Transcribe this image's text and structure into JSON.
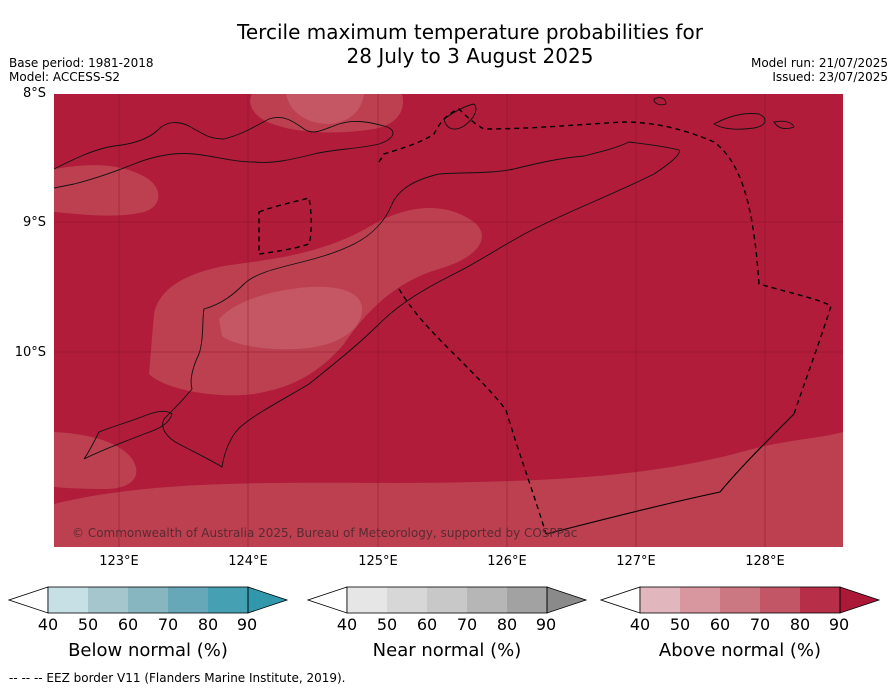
{
  "title_line1": "Tercile maximum temperature probabilities for",
  "title_line2": "28 July to 3 August 2025",
  "base_period": "Base period: 1981-2018",
  "model": "Model: ACCESS-S2",
  "model_run": "Model run: 21/07/2025",
  "issued": "Issued: 23/07/2025",
  "lat_labels": [
    "8°S",
    "9°S",
    "10°S"
  ],
  "lon_labels": [
    "123°E",
    "124°E",
    "125°E",
    "126°E",
    "127°E",
    "128°E"
  ],
  "copyright": "© Commonwealth of Australia 2025, Bureau of Meteorology, supported by COSPPac",
  "footer": "-- -- -- EEZ border V11 (Flanders Marine Institute, 2019).",
  "colorbars": [
    {
      "label": "Below normal (%)",
      "ticks": [
        "40",
        "50",
        "60",
        "70",
        "80",
        "90"
      ],
      "colors": [
        "#ffffff",
        "#c6e0e6",
        "#a5c6cc",
        "#87b6c0",
        "#66a8b7",
        "#44a0b2",
        "#3098aa"
      ]
    },
    {
      "label": "Near normal (%)",
      "ticks": [
        "40",
        "50",
        "60",
        "70",
        "80",
        "90"
      ],
      "colors": [
        "#ffffff",
        "#e6e6e6",
        "#d7d7d7",
        "#c8c8c8",
        "#b6b6b6",
        "#a2a2a2",
        "#8a8a8a"
      ]
    },
    {
      "label": "Above normal (%)",
      "ticks": [
        "40",
        "50",
        "60",
        "70",
        "80",
        "90"
      ],
      "colors": [
        "#ffffff",
        "#e2b6bd",
        "#d8969f",
        "#cc7882",
        "#c25666",
        "#b72e48",
        "#ac1838"
      ]
    }
  ],
  "map_colors": {
    "dominant": "#b01c3a",
    "band80": "#bc4050",
    "band70": "#c55664",
    "band60": "#cf737e"
  }
}
